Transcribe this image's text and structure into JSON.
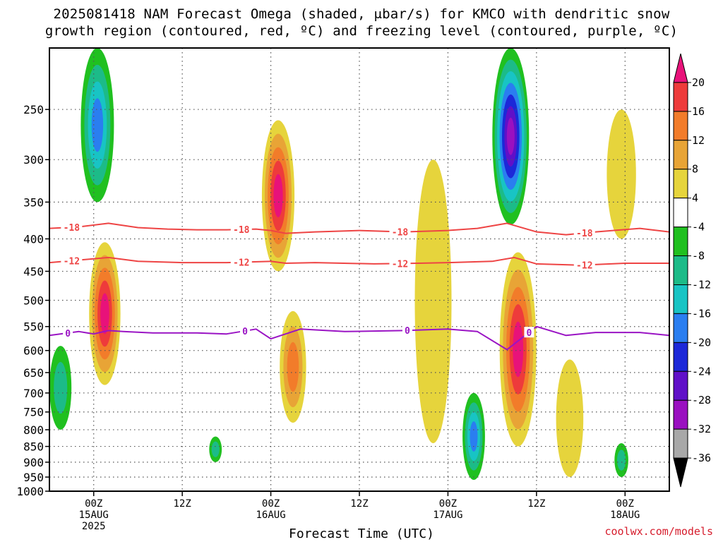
{
  "title_line1": "2025081418 NAM Forecast Omega (shaded, μbar/s) for KMCO with dendritic snow",
  "title_line2": "growth region (contoured, red, ºC) and freezing level (contoured, purple, ºC)",
  "credit": "coolwx.com/models",
  "chart_data": {
    "type": "heatmap",
    "title": "2025081418 NAM Forecast Omega (shaded, μbar/s) for KMCO with dendritic snow growth region (contoured, red, ºC) and freezing level (contoured, purple, ºC)",
    "xlabel": "Forecast Time (UTC)",
    "ylabel": "",
    "x_units": "hours from 2025-08-14 18Z",
    "xlim": [
      0,
      84
    ],
    "ylim_hPa": [
      1000,
      200
    ],
    "x_ticks": [
      {
        "hour": 6,
        "label": "00Z",
        "date": "15AUG",
        "year": "2025"
      },
      {
        "hour": 18,
        "label": "12Z",
        "date": "",
        "year": ""
      },
      {
        "hour": 30,
        "label": "00Z",
        "date": "16AUG",
        "year": ""
      },
      {
        "hour": 42,
        "label": "12Z",
        "date": "",
        "year": ""
      },
      {
        "hour": 54,
        "label": "00Z",
        "date": "17AUG",
        "year": ""
      },
      {
        "hour": 66,
        "label": "12Z",
        "date": "",
        "year": ""
      },
      {
        "hour": 78,
        "label": "00Z",
        "date": "18AUG",
        "year": ""
      }
    ],
    "y_ticks": [
      250,
      300,
      350,
      400,
      450,
      500,
      550,
      600,
      650,
      700,
      750,
      800,
      850,
      900,
      950,
      1000
    ],
    "grid": true,
    "colorbar": {
      "labels": [
        "20",
        "16",
        "12",
        "8",
        "4",
        "-4",
        "-8",
        "-12",
        "-16",
        "-20",
        "-24",
        "-28",
        "-32",
        "-36"
      ],
      "colors": [
        "#e8127a",
        "#ee3b3b",
        "#f27c2a",
        "#e8a436",
        "#e6d43c",
        "#ffffff",
        "#20c020",
        "#1cbb88",
        "#18c4c4",
        "#2a7ef0",
        "#1c28d8",
        "#6010c8",
        "#9a10c0",
        "#a8a8a8",
        "#000000"
      ]
    },
    "contours": {
      "dgz_red": [
        {
          "level": "-18",
          "color": "#ee4444",
          "points": [
            [
              0,
              385
            ],
            [
              4,
              383
            ],
            [
              8,
              378
            ],
            [
              12,
              384
            ],
            [
              16,
              386
            ],
            [
              20,
              387
            ],
            [
              24,
              387
            ],
            [
              28,
              386
            ],
            [
              30,
              388
            ],
            [
              32,
              392
            ],
            [
              36,
              390
            ],
            [
              42,
              388
            ],
            [
              48,
              390
            ],
            [
              54,
              388
            ],
            [
              58,
              385
            ],
            [
              62,
              378
            ],
            [
              66,
              390
            ],
            [
              70,
              394
            ],
            [
              74,
              390
            ],
            [
              80,
              385
            ],
            [
              84,
              390
            ]
          ]
        },
        {
          "level": "-12",
          "color": "#ee4444",
          "points": [
            [
              0,
              436
            ],
            [
              4,
              432
            ],
            [
              8,
              428
            ],
            [
              12,
              434
            ],
            [
              18,
              436
            ],
            [
              24,
              436
            ],
            [
              30,
              434
            ],
            [
              32,
              437
            ],
            [
              36,
              436
            ],
            [
              44,
              438
            ],
            [
              50,
              437
            ],
            [
              54,
              436
            ],
            [
              60,
              434
            ],
            [
              63,
              428
            ],
            [
              66,
              438
            ],
            [
              72,
              440
            ],
            [
              78,
              437
            ],
            [
              84,
              437
            ]
          ]
        }
      ],
      "freezing_purple": [
        {
          "level": "0",
          "color": "#9a14c4",
          "points": [
            [
              0,
              568
            ],
            [
              4,
              560
            ],
            [
              6,
              565
            ],
            [
              8,
              558
            ],
            [
              10,
              560
            ],
            [
              14,
              563
            ],
            [
              20,
              563
            ],
            [
              24,
              565
            ],
            [
              28,
              555
            ],
            [
              30,
              575
            ],
            [
              34,
              555
            ],
            [
              40,
              560
            ],
            [
              48,
              558
            ],
            [
              54,
              555
            ],
            [
              58,
              560
            ],
            [
              62,
              598
            ],
            [
              66,
              550
            ],
            [
              70,
              568
            ],
            [
              74,
              562
            ],
            [
              80,
              562
            ],
            [
              84,
              568
            ]
          ]
        }
      ]
    },
    "shaded_regions": [
      {
        "sign": "positive",
        "hour": 7.5,
        "p_top": 405,
        "p_bottom": 680,
        "peak": 20
      },
      {
        "sign": "negative",
        "hour": 6.5,
        "p_top": 200,
        "p_bottom": 350,
        "peak": -14
      },
      {
        "sign": "positive",
        "hour": 31.0,
        "p_top": 260,
        "p_bottom": 450,
        "peak": 20
      },
      {
        "sign": "positive",
        "hour": 33.0,
        "p_top": 520,
        "p_bottom": 780,
        "peak": 12
      },
      {
        "sign": "positive",
        "hour": 63.5,
        "p_top": 420,
        "p_bottom": 850,
        "peak": 20
      },
      {
        "sign": "negative",
        "hour": 62.5,
        "p_top": 200,
        "p_bottom": 380,
        "peak": -28
      },
      {
        "sign": "negative",
        "hour": 57.5,
        "p_top": 700,
        "p_bottom": 960,
        "peak": -14
      },
      {
        "sign": "negative",
        "hour": 1.5,
        "p_top": 590,
        "p_bottom": 800,
        "peak": -8
      },
      {
        "sign": "negative",
        "hour": 22.5,
        "p_top": 820,
        "p_bottom": 900,
        "peak": -8
      },
      {
        "sign": "positive",
        "hour": 52.0,
        "p_top": 300,
        "p_bottom": 840,
        "peak": 4
      },
      {
        "sign": "positive",
        "hour": 77.5,
        "p_top": 250,
        "p_bottom": 400,
        "peak": 4
      },
      {
        "sign": "positive",
        "hour": 70.5,
        "p_top": 620,
        "p_bottom": 950,
        "peak": 4
      },
      {
        "sign": "negative",
        "hour": 77.5,
        "p_top": 840,
        "p_bottom": 950,
        "peak": -8
      }
    ]
  }
}
